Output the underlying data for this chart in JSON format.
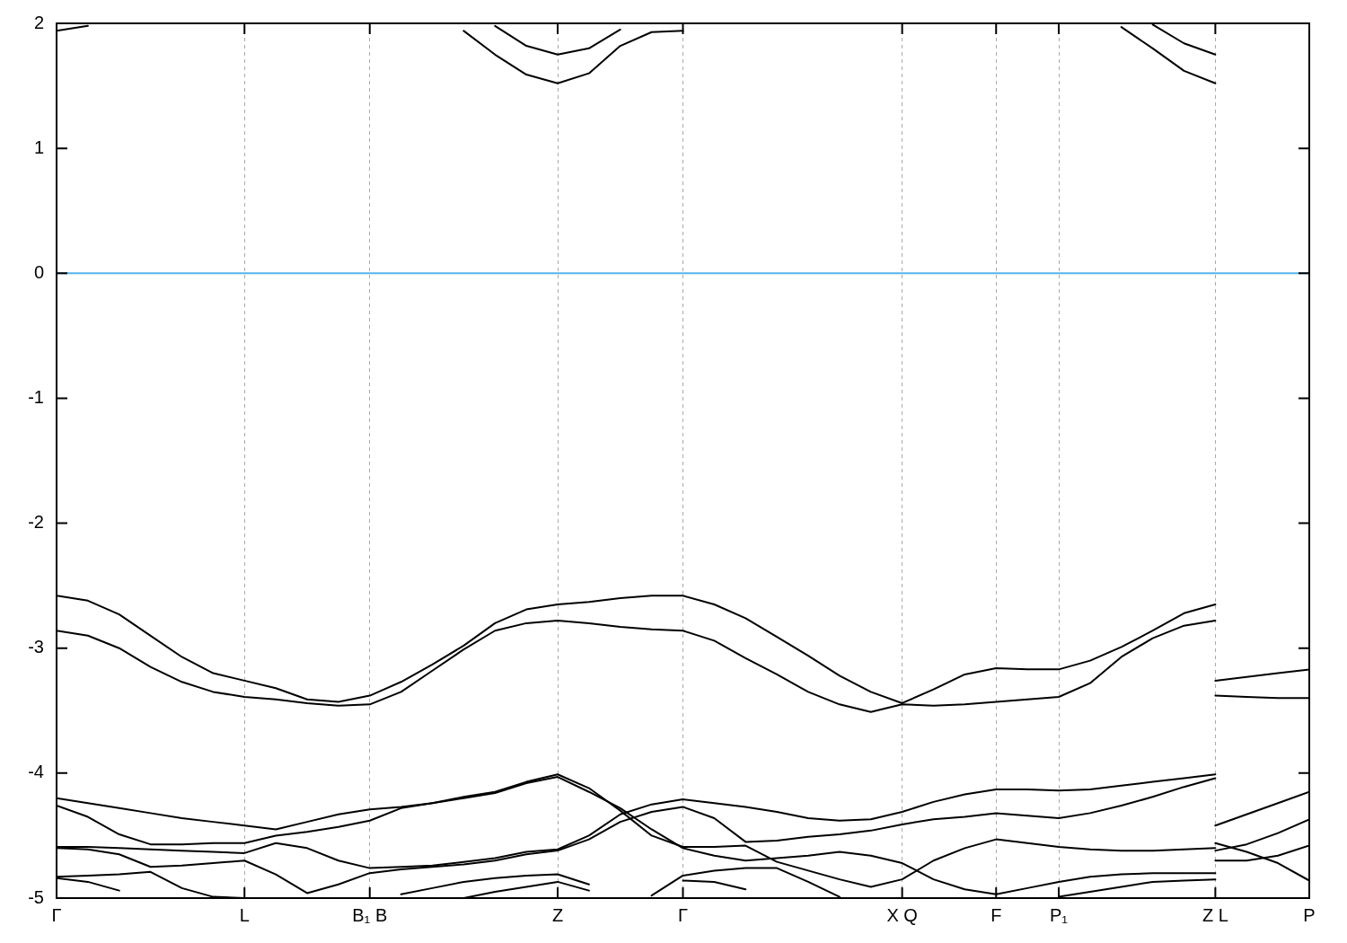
{
  "chart_data": {
    "type": "line",
    "categories": [
      "Γ",
      null,
      null,
      null,
      null,
      null,
      "L",
      null,
      null,
      null,
      "B₁ B",
      null,
      null,
      null,
      null,
      null,
      "Z",
      null,
      null,
      null,
      "Γ",
      null,
      null,
      null,
      null,
      null,
      null,
      "X Q",
      null,
      null,
      "F",
      null,
      "P₁",
      null,
      null,
      null,
      null,
      "Z L",
      null,
      null,
      "P"
    ],
    "ylim": [
      -5,
      2
    ],
    "yticks": [
      -5,
      -4,
      -3,
      -2,
      -1,
      0,
      1,
      2
    ],
    "grid": "x",
    "marker": "none",
    "line_style": "solid",
    "ref_lines": [
      {
        "axis": "y",
        "value": 0,
        "color": "#56b4e9"
      }
    ],
    "series": [
      {
        "color": "#000000",
        "values": [
          -2.58,
          -2.62,
          -2.73,
          -2.9,
          -3.07,
          -3.2,
          -3.26,
          -3.32,
          -3.41,
          -3.43,
          -3.38,
          -3.27,
          -3.13,
          -2.98,
          -2.8,
          -2.69,
          -2.65,
          -2.63,
          -2.6,
          -2.58,
          -2.58,
          -2.65,
          -2.76,
          -2.91,
          -3.06,
          -3.22,
          -3.35,
          -3.44,
          -3.33,
          -3.21,
          -3.16,
          -3.17,
          -3.17,
          -3.1,
          -2.99,
          -2.86,
          -2.72,
          -2.65,
          null,
          null,
          null
        ]
      },
      {
        "color": "#000000",
        "values": [
          -2.86,
          -2.9,
          -3.0,
          -3.15,
          -3.27,
          -3.35,
          -3.39,
          -3.41,
          -3.44,
          -3.46,
          -3.45,
          -3.35,
          -3.18,
          -3.01,
          -2.86,
          -2.8,
          -2.78,
          -2.8,
          -2.83,
          -2.85,
          -2.86,
          -2.94,
          -3.08,
          -3.21,
          -3.35,
          -3.45,
          -3.51,
          -3.45,
          -3.46,
          -3.45,
          -3.43,
          -3.41,
          -3.39,
          -3.28,
          -3.07,
          -2.92,
          -2.82,
          -2.78,
          null,
          null,
          null
        ]
      },
      {
        "color": "#000000",
        "values": [
          null,
          null,
          null,
          null,
          null,
          null,
          null,
          null,
          null,
          null,
          null,
          null,
          null,
          null,
          null,
          null,
          null,
          null,
          null,
          null,
          null,
          null,
          null,
          null,
          null,
          null,
          null,
          null,
          null,
          null,
          null,
          null,
          null,
          null,
          null,
          null,
          null,
          -3.26,
          -3.23,
          -3.2,
          -3.17
        ]
      },
      {
        "color": "#000000",
        "values": [
          null,
          null,
          null,
          null,
          null,
          null,
          null,
          null,
          null,
          null,
          null,
          null,
          null,
          null,
          null,
          null,
          null,
          null,
          null,
          null,
          null,
          null,
          null,
          null,
          null,
          null,
          null,
          null,
          null,
          null,
          null,
          null,
          null,
          null,
          null,
          null,
          null,
          -3.38,
          -3.39,
          -3.4,
          -3.4
        ]
      },
      {
        "color": "#000000",
        "values": [
          1.94,
          1.98,
          null,
          null,
          null,
          null,
          null,
          null,
          null,
          null,
          null,
          null,
          null,
          1.94,
          1.75,
          1.59,
          1.52,
          1.6,
          1.82,
          1.93,
          1.94,
          null,
          null,
          null,
          null,
          null,
          null,
          null,
          null,
          null,
          null,
          null,
          null,
          null,
          null,
          null,
          null,
          null,
          null,
          null,
          null
        ]
      },
      {
        "color": "#000000",
        "values": [
          null,
          null,
          null,
          null,
          null,
          null,
          null,
          null,
          null,
          null,
          null,
          null,
          null,
          null,
          1.98,
          1.82,
          1.75,
          1.8,
          1.95,
          null,
          null,
          null,
          null,
          null,
          null,
          null,
          null,
          null,
          null,
          null,
          null,
          null,
          null,
          null,
          null,
          null,
          null,
          null,
          null,
          null,
          null
        ]
      },
      {
        "color": "#000000",
        "values": [
          null,
          null,
          null,
          null,
          null,
          null,
          null,
          null,
          null,
          null,
          null,
          null,
          null,
          null,
          null,
          null,
          null,
          null,
          null,
          null,
          null,
          null,
          null,
          null,
          null,
          null,
          null,
          null,
          null,
          null,
          null,
          null,
          null,
          null,
          1.97,
          1.8,
          1.62,
          1.52,
          null,
          null,
          null
        ]
      },
      {
        "color": "#000000",
        "values": [
          null,
          null,
          null,
          null,
          null,
          null,
          null,
          null,
          null,
          null,
          null,
          null,
          null,
          null,
          null,
          null,
          null,
          null,
          null,
          null,
          null,
          null,
          null,
          null,
          null,
          null,
          null,
          null,
          null,
          null,
          null,
          null,
          null,
          null,
          null,
          1.99,
          1.84,
          1.75,
          null,
          null,
          null
        ]
      },
      {
        "color": "#000000",
        "values": [
          -4.2,
          -4.24,
          -4.28,
          -4.32,
          -4.36,
          -4.39,
          -4.42,
          -4.45,
          -4.39,
          -4.33,
          -4.29,
          -4.27,
          -4.24,
          -4.19,
          -4.15,
          -4.07,
          -4.01,
          -4.12,
          -4.3,
          -4.5,
          -4.59,
          -4.59,
          -4.58,
          -4.71,
          -4.78,
          -4.85,
          -4.91,
          -4.85,
          -4.7,
          -4.6,
          -4.53,
          -4.56,
          -4.59,
          -4.61,
          -4.62,
          -4.62,
          -4.61,
          -4.6,
          null,
          null,
          null
        ]
      },
      {
        "color": "#000000",
        "values": [
          -4.26,
          -4.35,
          -4.49,
          -4.57,
          -4.57,
          -4.56,
          -4.56,
          -4.5,
          -4.47,
          -4.43,
          -4.38,
          -4.28,
          -4.24,
          -4.2,
          -4.16,
          -4.08,
          -4.03,
          -4.15,
          -4.28,
          -4.45,
          -4.6,
          -4.66,
          -4.7,
          -4.68,
          -4.66,
          -4.63,
          -4.66,
          -4.72,
          -4.85,
          -4.93,
          -4.97,
          -4.92,
          -4.87,
          -4.83,
          -4.81,
          -4.8,
          -4.8,
          -4.8,
          null,
          null,
          null
        ]
      },
      {
        "color": "#000000",
        "values": [
          -4.59,
          -4.59,
          -4.6,
          -4.61,
          -4.62,
          -4.63,
          -4.64,
          -4.56,
          -4.6,
          -4.7,
          -4.76,
          -4.75,
          -4.74,
          -4.71,
          -4.68,
          -4.63,
          -4.61,
          -4.5,
          -4.33,
          -4.25,
          -4.21,
          -4.24,
          -4.27,
          -4.31,
          -4.36,
          -4.38,
          -4.37,
          -4.31,
          -4.23,
          -4.17,
          -4.13,
          -4.13,
          -4.14,
          -4.13,
          -4.1,
          -4.07,
          -4.04,
          -4.01,
          null,
          null,
          null
        ]
      },
      {
        "color": "#000000",
        "values": [
          -4.6,
          -4.61,
          -4.65,
          -4.75,
          -4.74,
          -4.72,
          -4.7,
          -4.81,
          -4.96,
          -4.89,
          -4.8,
          -4.77,
          -4.75,
          -4.73,
          -4.7,
          -4.65,
          -4.62,
          -4.53,
          -4.39,
          -4.31,
          -4.27,
          -4.36,
          -4.55,
          -4.54,
          -4.51,
          -4.49,
          -4.46,
          -4.41,
          -4.37,
          -4.35,
          -4.32,
          -4.34,
          -4.36,
          -4.32,
          -4.26,
          -4.19,
          -4.11,
          -4.04,
          null,
          null,
          null
        ]
      },
      {
        "color": "#000000",
        "values": [
          -4.83,
          -4.82,
          -4.81,
          -4.79,
          -4.92,
          -4.99,
          -5.0,
          null,
          null,
          null,
          null,
          -4.97,
          -4.92,
          -4.87,
          -4.84,
          -4.82,
          -4.81,
          -4.89,
          null,
          -4.98,
          -4.82,
          -4.78,
          -4.76,
          -4.76,
          -4.87,
          -4.99,
          null,
          null,
          null,
          null,
          null,
          null,
          -4.99,
          -4.95,
          -4.91,
          -4.87,
          -4.86,
          -4.85,
          null,
          null,
          null
        ]
      },
      {
        "color": "#000000",
        "values": [
          -4.84,
          -4.87,
          -4.94,
          null,
          null,
          null,
          null,
          null,
          null,
          null,
          null,
          null,
          null,
          -5.0,
          -4.95,
          -4.91,
          -4.87,
          -4.94,
          null,
          null,
          -4.86,
          -4.87,
          -4.93,
          null,
          null,
          null,
          null,
          null,
          null,
          null,
          null,
          null,
          null,
          null,
          null,
          null,
          null,
          null,
          null,
          null,
          null
        ]
      },
      {
        "color": "#000000",
        "values": [
          null,
          null,
          null,
          null,
          null,
          null,
          null,
          null,
          null,
          null,
          null,
          null,
          null,
          null,
          null,
          null,
          null,
          null,
          null,
          null,
          null,
          null,
          null,
          null,
          null,
          null,
          null,
          null,
          null,
          null,
          null,
          null,
          null,
          null,
          null,
          null,
          null,
          -4.42,
          -4.33,
          -4.24,
          -4.15
        ]
      },
      {
        "color": "#000000",
        "values": [
          null,
          null,
          null,
          null,
          null,
          null,
          null,
          null,
          null,
          null,
          null,
          null,
          null,
          null,
          null,
          null,
          null,
          null,
          null,
          null,
          null,
          null,
          null,
          null,
          null,
          null,
          null,
          null,
          null,
          null,
          null,
          null,
          null,
          null,
          null,
          null,
          null,
          -4.56,
          -4.63,
          -4.72,
          -4.86
        ]
      },
      {
        "color": "#000000",
        "values": [
          null,
          null,
          null,
          null,
          null,
          null,
          null,
          null,
          null,
          null,
          null,
          null,
          null,
          null,
          null,
          null,
          null,
          null,
          null,
          null,
          null,
          null,
          null,
          null,
          null,
          null,
          null,
          null,
          null,
          null,
          null,
          null,
          null,
          null,
          null,
          null,
          null,
          -4.62,
          -4.57,
          -4.48,
          -4.37
        ]
      },
      {
        "color": "#000000",
        "values": [
          null,
          null,
          null,
          null,
          null,
          null,
          null,
          null,
          null,
          null,
          null,
          null,
          null,
          null,
          null,
          null,
          null,
          null,
          null,
          null,
          null,
          null,
          null,
          null,
          null,
          null,
          null,
          null,
          null,
          null,
          null,
          null,
          null,
          null,
          null,
          null,
          null,
          -4.7,
          -4.7,
          -4.66,
          -4.58
        ]
      }
    ]
  }
}
